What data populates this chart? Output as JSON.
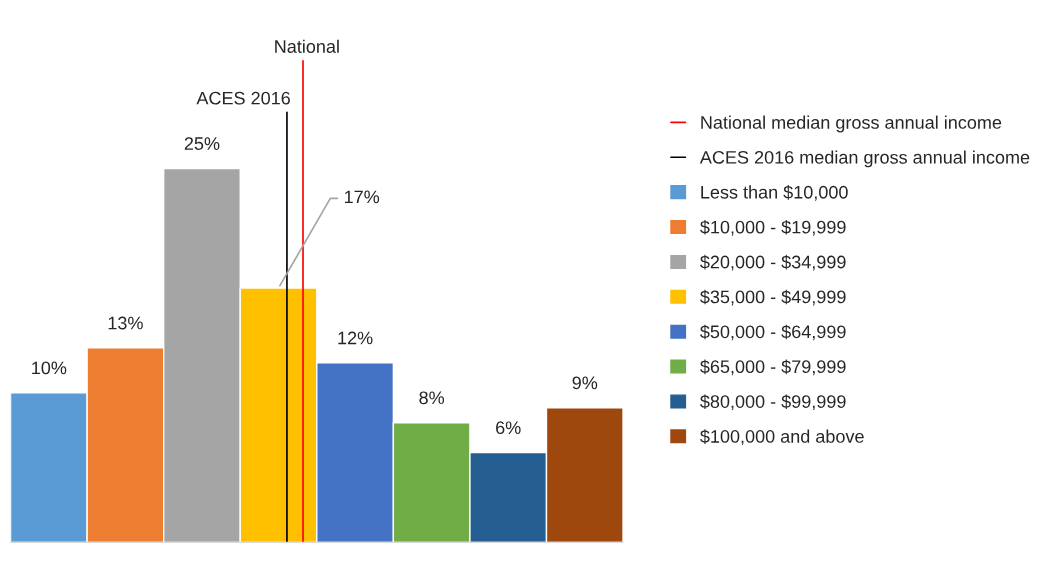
{
  "chart_data": {
    "type": "bar",
    "categories": [
      null,
      null,
      null,
      null,
      null,
      null,
      null,
      null
    ],
    "values": [
      10,
      13,
      25,
      17,
      12,
      8,
      6,
      9
    ],
    "colors": [
      "#5b9bd5",
      "#ed7d31",
      "#a5a5a5",
      "#ffc000",
      "#4472c4",
      "#70ad47",
      "#255e91",
      "#9e480e"
    ],
    "value_labels": [
      "10%",
      "13%",
      "25%",
      "17%",
      "12%",
      "8%",
      "6%",
      "9%"
    ],
    "tick_labels": false,
    "annotations": [
      "National",
      "ACES 2016",
      "National median gross annual income",
      "ACES 2016 median gross annual income",
      "Less than $10,000",
      "$10,000 - $19,999",
      "$20,000 - $34,999",
      "$35,000 - $49,999",
      "$50,000 - $64,999",
      "$65,000 - $79,999",
      "$80,000 - $99,999",
      "$100,000 and above"
    ]
  }
}
